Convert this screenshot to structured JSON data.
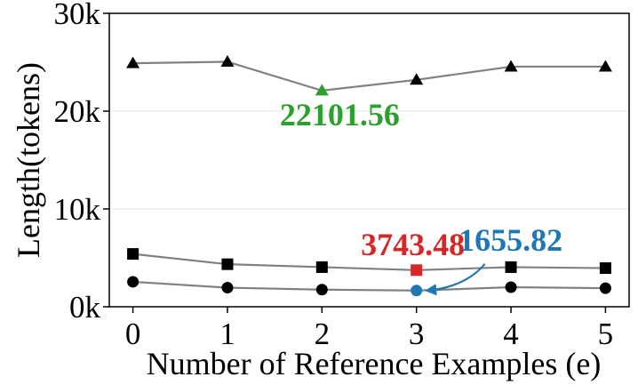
{
  "chart_data": {
    "type": "line",
    "xlabel": "Number of Reference Examples (e)",
    "ylabel": "Length(tokens)",
    "x": [
      0,
      1,
      2,
      3,
      4,
      5
    ],
    "xlim": [
      -0.25,
      5.25
    ],
    "ylim": [
      0,
      30000
    ],
    "yticks": [
      0,
      10000,
      20000,
      30000
    ],
    "ytick_labels": [
      "0k",
      "10k",
      "20k",
      "30k"
    ],
    "grid": true,
    "series": [
      {
        "marker": "triangle",
        "color": "#000000",
        "values": [
          24900,
          25050,
          22101.56,
          23200,
          24550,
          24550
        ]
      },
      {
        "marker": "square",
        "color": "#000000",
        "values": [
          5400,
          4350,
          4050,
          3743.48,
          4050,
          3950
        ]
      },
      {
        "marker": "circle",
        "color": "#000000",
        "values": [
          2550,
          1950,
          1750,
          1655.82,
          2000,
          1900
        ]
      }
    ],
    "highlights": [
      {
        "series": 0,
        "index": 2,
        "label": "22101.56",
        "color": "#2ca02c"
      },
      {
        "series": 1,
        "index": 3,
        "label": "3743.48",
        "color": "#d62728"
      },
      {
        "series": 2,
        "index": 3,
        "label": "1655.82",
        "color": "#1f77b4",
        "arrow": true
      }
    ]
  }
}
